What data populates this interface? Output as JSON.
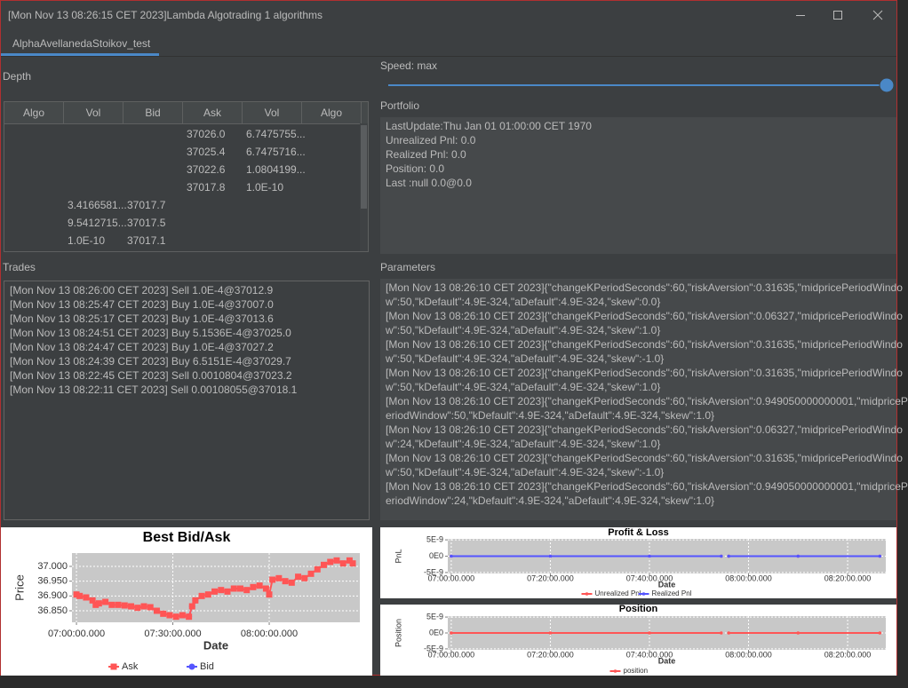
{
  "window": {
    "title": "[Mon Nov 13 08:26:15 CET 2023]Lambda Algotrading  1 algorithms"
  },
  "tabs": [
    "AlphaAvellanedaStoikov_test"
  ],
  "depth": {
    "label": "Depth",
    "columns": [
      "Algo",
      "Vol",
      "Bid",
      "Ask",
      "Vol",
      "Algo"
    ],
    "rows": [
      [
        null,
        null,
        null,
        "37026.0",
        "6.7475755...",
        null
      ],
      [
        null,
        null,
        null,
        "37025.4",
        "6.7475716...",
        null
      ],
      [
        null,
        null,
        null,
        "37022.6",
        "1.0804199...",
        null
      ],
      [
        null,
        null,
        null,
        "37017.8",
        "1.0E-10",
        null
      ],
      [
        null,
        "3.4166581...",
        "37017.7",
        null,
        null,
        null
      ],
      [
        null,
        "9.5412715...",
        "37017.5",
        null,
        null,
        null
      ],
      [
        null,
        "1.0E-10",
        "37017.1",
        null,
        null,
        null
      ]
    ]
  },
  "trades": {
    "label": "Trades",
    "lines": [
      "[Mon Nov 13 08:26:00 CET 2023] Sell 1.0E-4@37012.9",
      "[Mon Nov 13 08:25:47 CET 2023] Buy 1.0E-4@37007.0",
      "[Mon Nov 13 08:25:17 CET 2023] Buy 1.0E-4@37013.6",
      "[Mon Nov 13 08:24:51 CET 2023] Buy 5.1536E-4@37025.0",
      "[Mon Nov 13 08:24:47 CET 2023] Buy 1.0E-4@37027.2",
      "[Mon Nov 13 08:24:39 CET 2023] Buy 6.5151E-4@37029.7",
      "[Mon Nov 13 08:22:45 CET 2023] Sell 0.0010804@37023.2",
      "[Mon Nov 13 08:22:11 CET 2023] Sell 0.00108055@37018.1"
    ]
  },
  "speed": {
    "label": "Speed: max"
  },
  "portfolio": {
    "label": "Portfolio",
    "lines": [
      "LastUpdate:Thu Jan 01 01:00:00 CET 1970",
      "Unrealized Pnl: 0.0",
      "Realized Pnl: 0.0",
      "Position: 0.0",
      "Last :null 0.0@0.0"
    ]
  },
  "parameters": {
    "label": "Parameters",
    "lines": [
      "[Mon Nov 13 08:26:10 CET 2023]{\"changeKPeriodSeconds\":60,\"riskAversion\":0.31635,\"midpricePeriodWindo",
      "w\":50,\"kDefault\":4.9E-324,\"aDefault\":4.9E-324,\"skew\":0.0}",
      "[Mon Nov 13 08:26:10 CET 2023]{\"changeKPeriodSeconds\":60,\"riskAversion\":0.06327,\"midpricePeriodWindo",
      "w\":50,\"kDefault\":4.9E-324,\"aDefault\":4.9E-324,\"skew\":1.0}",
      "[Mon Nov 13 08:26:10 CET 2023]{\"changeKPeriodSeconds\":60,\"riskAversion\":0.31635,\"midpricePeriodWindo",
      "w\":50,\"kDefault\":4.9E-324,\"aDefault\":4.9E-324,\"skew\":-1.0}",
      "[Mon Nov 13 08:26:10 CET 2023]{\"changeKPeriodSeconds\":60,\"riskAversion\":0.31635,\"midpricePeriodWindo",
      "w\":50,\"kDefault\":4.9E-324,\"aDefault\":4.9E-324,\"skew\":1.0}",
      "[Mon Nov 13 08:26:10 CET 2023]{\"changeKPeriodSeconds\":60,\"riskAversion\":0.949050000000001,\"midpriceP",
      "eriodWindow\":50,\"kDefault\":4.9E-324,\"aDefault\":4.9E-324,\"skew\":1.0}",
      "[Mon Nov 13 08:26:10 CET 2023]{\"changeKPeriodSeconds\":60,\"riskAversion\":0.06327,\"midpricePeriodWindo",
      "w\":24,\"kDefault\":4.9E-324,\"aDefault\":4.9E-324,\"skew\":1.0}",
      "[Mon Nov 13 08:26:10 CET 2023]{\"changeKPeriodSeconds\":60,\"riskAversion\":0.31635,\"midpricePeriodWindo",
      "w\":50,\"kDefault\":4.9E-324,\"aDefault\":4.9E-324,\"skew\":-1.0}",
      "[Mon Nov 13 08:26:10 CET 2023]{\"changeKPeriodSeconds\":60,\"riskAversion\":0.949050000000001,\"midpriceP",
      "eriodWindow\":24,\"kDefault\":4.9E-324,\"aDefault\":4.9E-324,\"skew\":1.0}"
    ]
  },
  "chart_data": [
    {
      "type": "line",
      "title": "Best Bid/Ask",
      "x_label": "Date",
      "y_label": "Price",
      "x": [
        420,
        421,
        423,
        425,
        426,
        427,
        429,
        431,
        433,
        435,
        437,
        439,
        441,
        443,
        445,
        447,
        449,
        451,
        453,
        455,
        456,
        457,
        459,
        461,
        463,
        465,
        467,
        469,
        471,
        473,
        475,
        477,
        479,
        480,
        481,
        483,
        485,
        487,
        489,
        491,
        493,
        495,
        497,
        499,
        501,
        503,
        505,
        506
      ],
      "series": [
        {
          "name": "Bid",
          "color": "#5555ff",
          "marker": "circle",
          "values": [
            null,
            null,
            null,
            null,
            null,
            null,
            null,
            null,
            null,
            null,
            null,
            null,
            null,
            null,
            null,
            null,
            null,
            null,
            null,
            36.83,
            36.865,
            36.885,
            null,
            null,
            null,
            null,
            null,
            null,
            null,
            null,
            null,
            null,
            null,
            null,
            null,
            null,
            null,
            null,
            null,
            null,
            null,
            null,
            null,
            null,
            null,
            null,
            null,
            null
          ]
        },
        {
          "name": "Ask",
          "color": "#ff5555",
          "marker": "square",
          "values": [
            36.905,
            36.9,
            36.895,
            36.885,
            36.87,
            36.875,
            36.88,
            36.87,
            36.87,
            36.868,
            36.865,
            36.86,
            36.865,
            36.862,
            36.85,
            36.84,
            36.835,
            36.83,
            36.835,
            36.83,
            36.865,
            36.885,
            36.9,
            36.905,
            36.915,
            36.92,
            36.915,
            36.925,
            36.925,
            36.92,
            36.93,
            36.935,
            36.925,
            36.905,
            36.955,
            36.96,
            36.95,
            36.945,
            36.965,
            36.96,
            36.975,
            36.99,
            37.005,
            37.015,
            37.02,
            37.01,
            37.02,
            37.01
          ]
        }
      ],
      "legend_order": [
        1,
        0
      ],
      "xlim": [
        418.6,
        508.2
      ],
      "ylim": [
        36.811,
        37.045
      ],
      "xticks": [
        {
          "value": 420,
          "label": "07:00:00.000"
        },
        {
          "value": 450,
          "label": "07:30:00.000"
        },
        {
          "value": 480,
          "label": "08:00:00.000"
        }
      ],
      "yticks": [
        {
          "value": 36.85,
          "label": "36.850"
        },
        {
          "value": 36.9,
          "label": "36.900"
        },
        {
          "value": 36.95,
          "label": "36.950"
        },
        {
          "value": 37,
          "label": "37.000"
        }
      ],
      "grid": true,
      "legend": "bottom"
    },
    {
      "type": "line",
      "title": "Profit & Loss",
      "x_label": "Date",
      "y_label": "PnL",
      "x": [
        420,
        440,
        460,
        474.5,
        475,
        476,
        490,
        506.5
      ],
      "series": [
        {
          "name": "Unrealized Pnl",
          "color": "#ff5555",
          "marker": "circle",
          "values": [
            0,
            0,
            0,
            0,
            null,
            0,
            0,
            0
          ]
        },
        {
          "name": "Realized Pnl",
          "color": "#5555ff",
          "marker": "circle",
          "values": [
            0,
            0,
            0,
            0,
            null,
            0,
            0,
            0
          ]
        }
      ],
      "legend_order": [
        0,
        1
      ],
      "xlim": [
        419.3,
        507.7
      ],
      "ylim": [
        -5.3e-09,
        5.3e-09
      ],
      "xticks": [
        {
          "value": 420,
          "label": "07:00:00.000"
        },
        {
          "value": 440,
          "label": "07:20:00.000"
        },
        {
          "value": 460,
          "label": "07:40:00.000"
        },
        {
          "value": 480,
          "label": "08:00:00.000"
        },
        {
          "value": 500,
          "label": "08:20:00.000"
        }
      ],
      "yticks": [
        {
          "value": -5e-09,
          "label": "-5E-9"
        },
        {
          "value": 0,
          "label": "0E0"
        },
        {
          "value": 5e-09,
          "label": "5E-9"
        }
      ],
      "grid": true,
      "legend": "bottom"
    },
    {
      "type": "line",
      "title": "Position",
      "x_label": "Date",
      "y_label": "Position",
      "x": [
        420,
        440,
        460,
        474.5,
        475,
        476,
        490,
        506.5
      ],
      "series": [
        {
          "name": "position",
          "color": "#ff5555",
          "marker": "circle",
          "values": [
            0,
            0,
            0,
            0,
            null,
            0,
            0,
            0
          ]
        }
      ],
      "legend_order": [
        0
      ],
      "xlim": [
        419.3,
        507.7
      ],
      "ylim": [
        -5.3e-09,
        5.3e-09
      ],
      "xticks": [
        {
          "value": 420,
          "label": "07:00:00.000"
        },
        {
          "value": 440,
          "label": "07:20:00.000"
        },
        {
          "value": 460,
          "label": "07:40:00.000"
        },
        {
          "value": 480,
          "label": "08:00:00.000"
        },
        {
          "value": 500,
          "label": "08:20:00.000"
        }
      ],
      "yticks": [
        {
          "value": -5e-09,
          "label": "-5E-9"
        },
        {
          "value": 0,
          "label": "0E0"
        },
        {
          "value": 5e-09,
          "label": "5E-9"
        }
      ],
      "grid": true,
      "legend": "bottom"
    }
  ]
}
